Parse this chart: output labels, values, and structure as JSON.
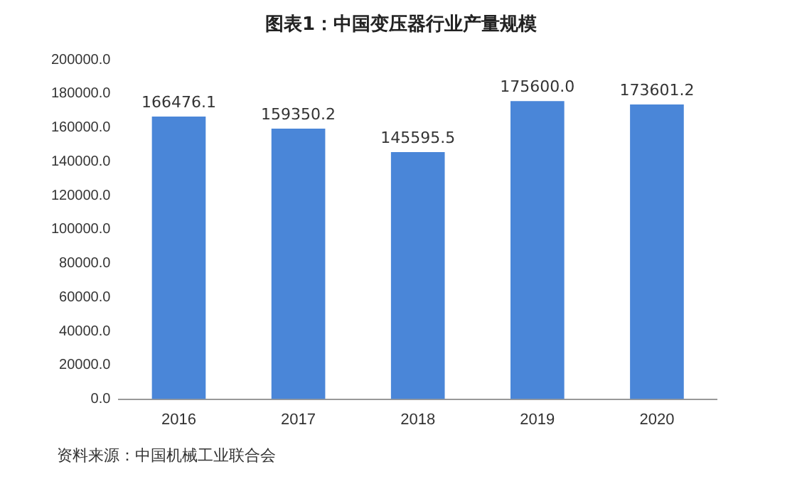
{
  "chart_data": {
    "type": "bar",
    "title": "图表1：中国变压器行业产量规模",
    "categories": [
      "2016",
      "2017",
      "2018",
      "2019",
      "2020"
    ],
    "values": [
      166476.1,
      159350.2,
      145595.5,
      175600.0,
      173601.2
    ],
    "value_labels": [
      "166476.1",
      "159350.2",
      "145595.5",
      "175600.0",
      "173601.2"
    ],
    "color": "#4a86d8",
    "ylim": [
      0,
      200000
    ],
    "yticks": [
      {
        "value": 0,
        "label": "0.0"
      },
      {
        "value": 20000,
        "label": "20000.0"
      },
      {
        "value": 40000,
        "label": "40000.0"
      },
      {
        "value": 60000,
        "label": "60000.0"
      },
      {
        "value": 80000,
        "label": "80000.0"
      },
      {
        "value": 100000,
        "label": "100000.0"
      },
      {
        "value": 120000,
        "label": "120000.0"
      },
      {
        "value": 140000,
        "label": "140000.0"
      },
      {
        "value": 160000,
        "label": "160000.0"
      },
      {
        "value": 180000,
        "label": "180000.0"
      },
      {
        "value": 200000,
        "label": "200000.0"
      }
    ],
    "grid": false,
    "annotations": [
      "资料来源：中国机械工业联合会"
    ]
  }
}
